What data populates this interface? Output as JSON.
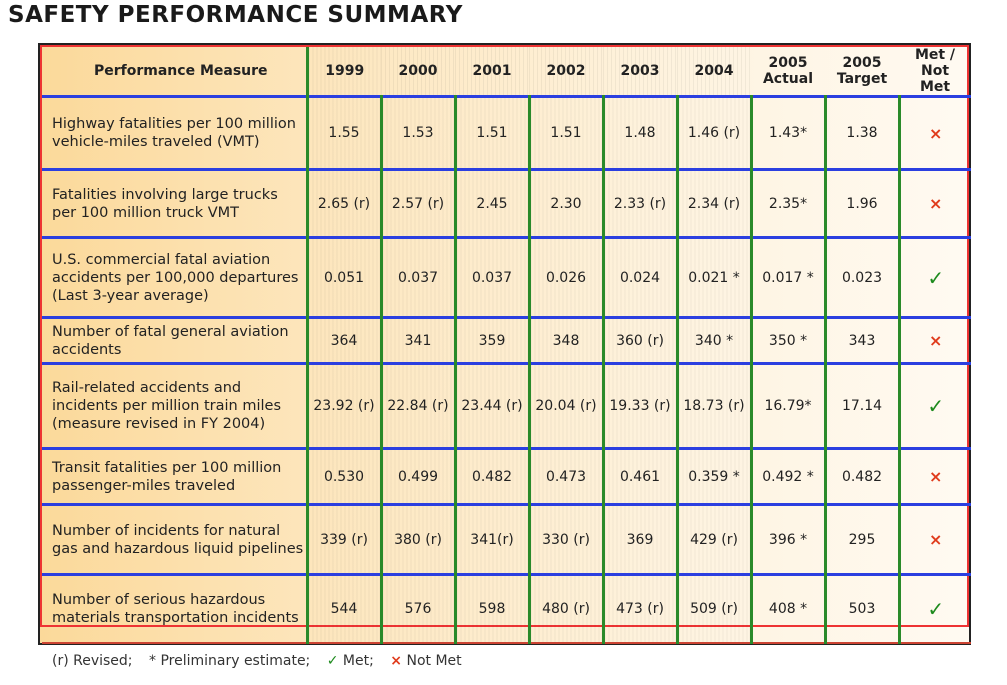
{
  "title": "SAFETY PERFORMANCE SUMMARY",
  "columns": [
    "Performance Measure",
    "1999",
    "2000",
    "2001",
    "2002",
    "2003",
    "2004",
    "2005 Actual",
    "2005 Target",
    "Met / Not Met"
  ],
  "rows": [
    {
      "measure": "Highway fatalities per 100 million vehicle-miles traveled (VMT)",
      "values": [
        "1.55",
        "1.53",
        "1.51",
        "1.51",
        "1.48",
        "1.46 (r)",
        "1.43*",
        "1.38"
      ],
      "status": "not_met"
    },
    {
      "measure": "Fatalities involving large trucks per 100 million truck VMT",
      "values": [
        "2.65 (r)",
        "2.57 (r)",
        "2.45",
        "2.30",
        "2.33 (r)",
        "2.34 (r)",
        "2.35*",
        "1.96"
      ],
      "status": "not_met"
    },
    {
      "measure": "U.S. commercial fatal aviation accidents per 100,000 departures (Last 3-year average)",
      "values": [
        "0.051",
        "0.037",
        "0.037",
        "0.026",
        "0.024",
        "0.021 *",
        "0.017 *",
        "0.023"
      ],
      "status": "met"
    },
    {
      "measure": "Number of fatal general aviation accidents",
      "values": [
        "364",
        "341",
        "359",
        "348",
        "360 (r)",
        "340 *",
        "350 *",
        "343"
      ],
      "status": "not_met"
    },
    {
      "measure": "Rail-related accidents and incidents per million train miles (measure revised in FY 2004)",
      "values": [
        "23.92 (r)",
        "22.84 (r)",
        "23.44 (r)",
        "20.04 (r)",
        "19.33 (r)",
        "18.73 (r)",
        "16.79*",
        "17.14"
      ],
      "status": "met"
    },
    {
      "measure": "Transit fatalities per 100 million passenger-miles traveled",
      "values": [
        "0.530",
        "0.499",
        "0.482",
        "0.473",
        "0.461",
        "0.359 *",
        "0.492 *",
        "0.482"
      ],
      "status": "not_met"
    },
    {
      "measure": "Number of incidents for natural gas and hazardous liquid pipelines",
      "values": [
        "339 (r)",
        "380 (r)",
        "341(r)",
        "330 (r)",
        "369",
        "429 (r)",
        "396 *",
        "295"
      ],
      "status": "not_met"
    },
    {
      "measure": "Number of serious hazardous materials transportation incidents",
      "values": [
        "544",
        "576",
        "598",
        "480 (r)",
        "473 (r)",
        "509 (r)",
        "408 *",
        "503"
      ],
      "status": "met"
    }
  ],
  "marks": {
    "met": "✓",
    "not_met": "×"
  },
  "legend": {
    "revised": "(r)  Revised;",
    "prelim_symbol": "*",
    "prelim": "Preliminary estimate;",
    "met": "Met;",
    "not_met": "Not Met"
  },
  "colors": {
    "met": "#1d8a1d",
    "not_met": "#e03b1c",
    "header_bg": "#fbd99a"
  }
}
